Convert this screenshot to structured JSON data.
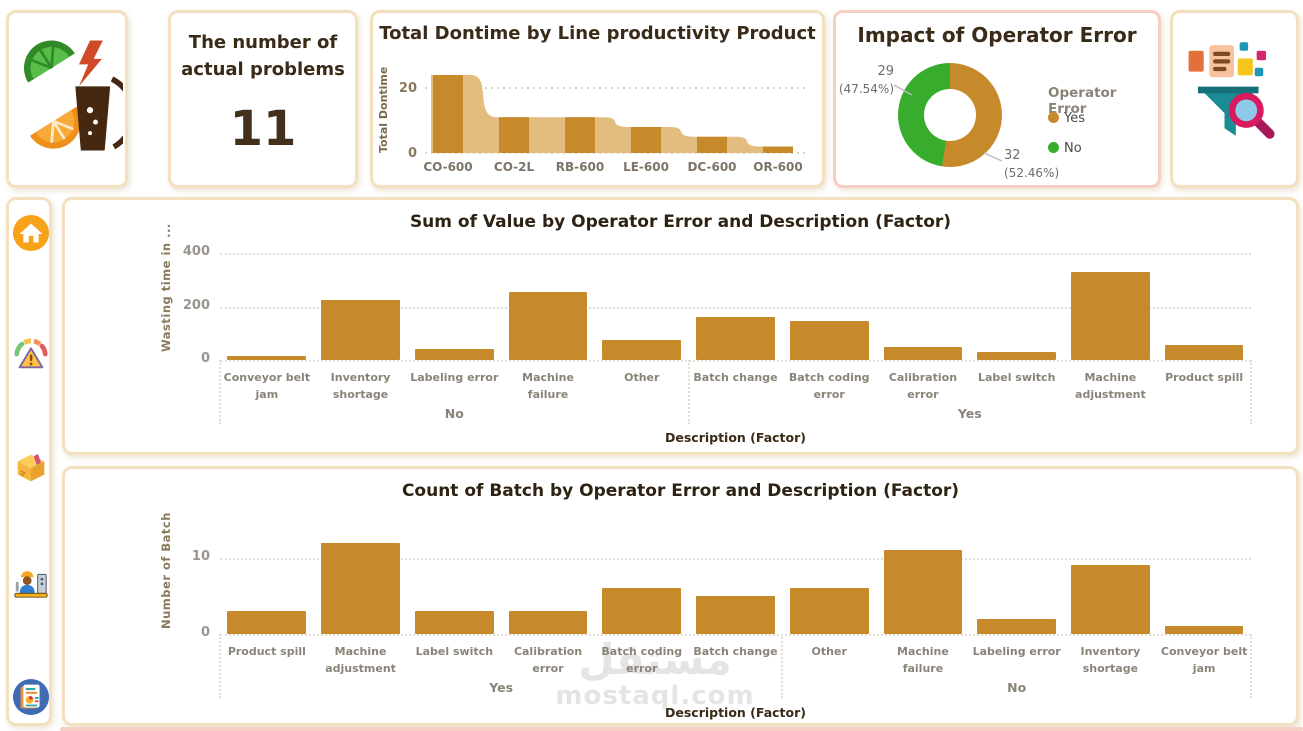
{
  "cards": {
    "problems": {
      "title": "The number of actual problems",
      "value": "11"
    }
  },
  "sidebar": {
    "icons": [
      "home",
      "risk-gauge",
      "package",
      "operator-machine",
      "report"
    ]
  },
  "watermark": {
    "line1": "مستقل",
    "line2": "mostaql.com"
  },
  "colors": {
    "bar": "#C78A2B",
    "area": "#E3BD7F",
    "green": "#38AC2D",
    "title_brown": "#3A2A18",
    "axis_gray": "#9A958C",
    "label_gray": "#8A8478",
    "card_border": "#F3E0BF",
    "salmon_border": "#F6CEC3",
    "bottom_strip": "#F7CFC5"
  },
  "chart_data": [
    {
      "id": "downtime",
      "type": "combo-bar-area",
      "title": "Total Dontime by Line productivity Product",
      "ylabel": "Total Dontime",
      "categories": [
        "CO-600",
        "CO-2L",
        "RB-600",
        "LE-600",
        "DC-600",
        "OR-600"
      ],
      "values": [
        24,
        11,
        11,
        8,
        5,
        2
      ],
      "yticks": [
        0,
        20
      ],
      "ylim": [
        0,
        26
      ],
      "grid": "dotted horizontal"
    },
    {
      "id": "operator_error",
      "type": "donut",
      "title": "Impact of Operator Error",
      "legend_title": "Operator Error",
      "legend_position": "right",
      "slices": [
        {
          "label": "Yes",
          "value": 32,
          "pct_label": "(52.46%)",
          "pct_value": 52.46,
          "color": "#C78A2B"
        },
        {
          "label": "No",
          "value": 29,
          "pct_label": "(47.54%)",
          "pct_value": 47.54,
          "color": "#38AC2D"
        }
      ]
    },
    {
      "id": "sum_value",
      "type": "bar",
      "title": "Sum of Value by Operator Error and Description (Factor)",
      "ylabel": "Wasting time in ...",
      "xlabel": "Description (Factor)",
      "yticks": [
        0,
        200,
        400
      ],
      "ylim": [
        0,
        420
      ],
      "grid": "dotted horizontal",
      "groups": [
        {
          "label": "No",
          "categories": [
            "Conveyor belt jam",
            "Inventory shortage",
            "Labeling error",
            "Machine failure",
            "Other"
          ],
          "values": [
            15,
            225,
            40,
            255,
            75
          ]
        },
        {
          "label": "Yes",
          "categories": [
            "Batch change",
            "Batch coding error",
            "Calibration error",
            "Label switch",
            "Machine adjustment",
            "Product spill"
          ],
          "values": [
            160,
            145,
            50,
            30,
            330,
            55
          ]
        }
      ]
    },
    {
      "id": "batch_count",
      "type": "bar",
      "title": "Count of Batch by Operator Error and Description (Factor)",
      "ylabel": "Number of Batch",
      "xlabel": "Description (Factor)",
      "yticks": [
        0,
        10
      ],
      "ylim": [
        0,
        13
      ],
      "grid": "dotted horizontal",
      "groups": [
        {
          "label": "Yes",
          "categories": [
            "Product spill",
            "Machine adjustment",
            "Label switch",
            "Calibration error",
            "Batch coding error",
            "Batch change"
          ],
          "values": [
            3,
            12,
            3,
            3,
            6,
            5
          ]
        },
        {
          "label": "No",
          "categories": [
            "Other",
            "Machine failure",
            "Labeling error",
            "Inventory shortage",
            "Conveyor belt jam"
          ],
          "values": [
            6,
            11,
            2,
            9,
            1
          ]
        }
      ]
    }
  ]
}
